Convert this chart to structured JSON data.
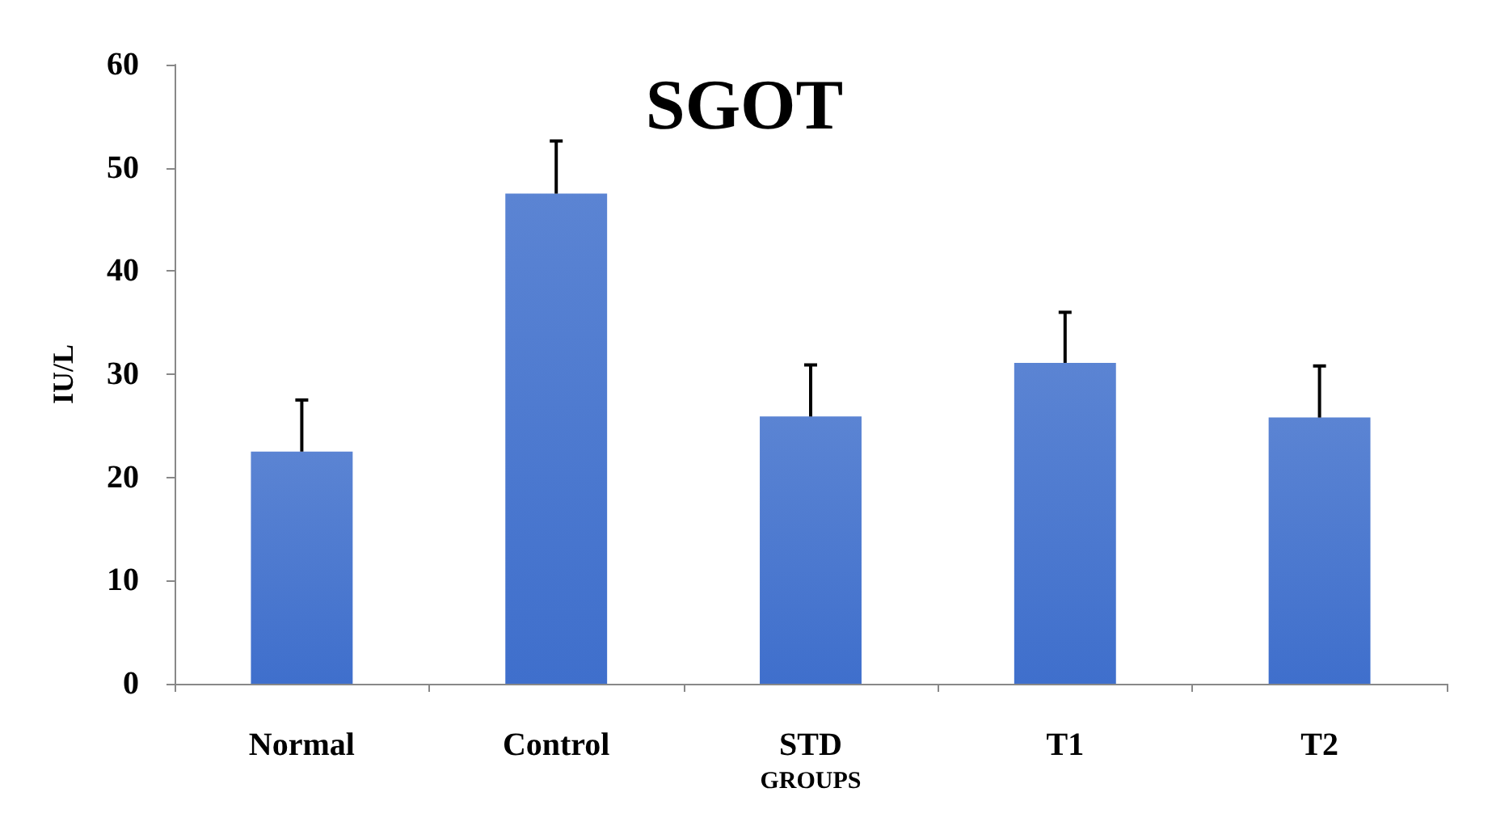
{
  "chart_data": {
    "type": "bar",
    "title": "SGOT",
    "xlabel": "GROUPS",
    "ylabel": "IU/L",
    "categories": [
      "Normal",
      "Control",
      "STD",
      "T1",
      "T2"
    ],
    "values": [
      22.5,
      47.5,
      25.9,
      31.1,
      25.8
    ],
    "errors": [
      [
        22.5,
        27.5
      ],
      [
        47.5,
        52.6
      ],
      [
        25.9,
        30.9
      ],
      [
        31.1,
        36.0
      ],
      [
        25.8,
        30.8
      ]
    ],
    "color": "#3f6fcc",
    "ylim": [
      0,
      60
    ],
    "yticks": [
      0,
      10,
      20,
      30,
      40,
      50,
      60
    ],
    "grid": false
  }
}
